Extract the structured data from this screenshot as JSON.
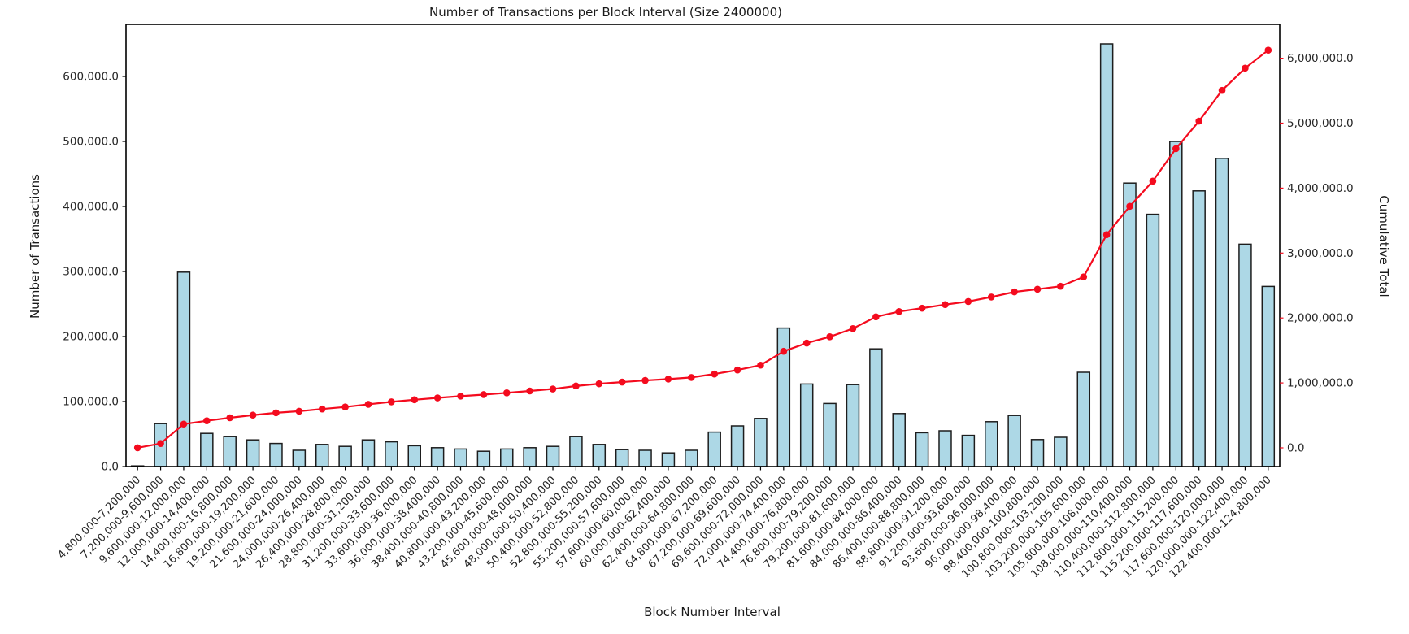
{
  "chart_data": {
    "type": "bar",
    "title": "Number of Transactions per Block Interval (Size 2400000)",
    "xlabel": "Block Number Interval",
    "ylabel_left": "Number of Transactions",
    "ylabel_right": "Cumulative Total",
    "grid": false,
    "legend": "none",
    "categories": [
      "4,800,000-7,200,000",
      "7,200,000-9,600,000",
      "9,600,000-12,000,000",
      "12,000,000-14,400,000",
      "14,400,000-16,800,000",
      "16,800,000-19,200,000",
      "19,200,000-21,600,000",
      "21,600,000-24,000,000",
      "24,000,000-26,400,000",
      "26,400,000-28,800,000",
      "28,800,000-31,200,000",
      "31,200,000-33,600,000",
      "33,600,000-36,000,000",
      "36,000,000-38,400,000",
      "38,400,000-40,800,000",
      "40,800,000-43,200,000",
      "43,200,000-45,600,000",
      "45,600,000-48,000,000",
      "48,000,000-50,400,000",
      "50,400,000-52,800,000",
      "52,800,000-55,200,000",
      "55,200,000-57,600,000",
      "57,600,000-60,000,000",
      "60,000,000-62,400,000",
      "62,400,000-64,800,000",
      "64,800,000-67,200,000",
      "67,200,000-69,600,000",
      "69,600,000-72,000,000",
      "72,000,000-74,400,000",
      "74,400,000-76,800,000",
      "76,800,000-79,200,000",
      "79,200,000-81,600,000",
      "81,600,000-84,000,000",
      "84,000,000-86,400,000",
      "86,400,000-88,800,000",
      "88,800,000-91,200,000",
      "91,200,000-93,600,000",
      "93,600,000-96,000,000",
      "96,000,000-98,400,000",
      "98,400,000-100,800,000",
      "100,800,000-103,200,000",
      "103,200,000-105,600,000",
      "105,600,000-108,000,000",
      "108,000,000-110,400,000",
      "110,400,000-112,800,000",
      "112,800,000-115,200,000",
      "115,200,000-117,600,000",
      "117,600,000-120,000,000",
      "120,000,000-122,400,000",
      "122,400,000-124,800,000"
    ],
    "series": [
      {
        "name": "Number of Transactions",
        "type": "bar",
        "axis": "left",
        "values": [
          1000,
          66000,
          299000,
          51000,
          46000,
          41000,
          35500,
          25000,
          34000,
          31000,
          41000,
          38000,
          32000,
          29000,
          27000,
          23500,
          27000,
          29000,
          31000,
          46000,
          34000,
          26000,
          25000,
          21000,
          25000,
          53000,
          62500,
          74000,
          213000,
          127000,
          97000,
          126000,
          181000,
          81500,
          52000,
          55000,
          48000,
          69000,
          78500,
          41500,
          45000,
          145000,
          650000,
          436000,
          388000,
          500000,
          424000,
          474000,
          342000,
          277000
        ]
      },
      {
        "name": "Cumulative Total",
        "type": "line",
        "axis": "right",
        "marker": "circle",
        "values": [
          1000,
          67000,
          366000,
          417000,
          463000,
          504000,
          539500,
          564500,
          598500,
          629500,
          670500,
          708500,
          740500,
          769500,
          796500,
          820000,
          847000,
          876000,
          907000,
          953000,
          987000,
          1013000,
          1038000,
          1059000,
          1084000,
          1137000,
          1199500,
          1273500,
          1486500,
          1613500,
          1710500,
          1836500,
          2017500,
          2099000,
          2151000,
          2206000,
          2254000,
          2323000,
          2401500,
          2443000,
          2488000,
          2633000,
          3283000,
          3719000,
          4107000,
          4607000,
          5031000,
          5505000,
          5847000,
          6124000
        ]
      }
    ],
    "left_axis": {
      "label": "Number of Transactions",
      "ticks": [
        0,
        100000,
        200000,
        300000,
        400000,
        500000,
        600000
      ],
      "tick_labels": [
        "0.0",
        "100,000.0",
        "200,000.0",
        "300,000.0",
        "400,000.0",
        "500,000.0",
        "600,000.0"
      ],
      "range": [
        0,
        680000
      ]
    },
    "right_axis": {
      "label": "Cumulative Total",
      "ticks": [
        0,
        1000000,
        2000000,
        3000000,
        4000000,
        5000000,
        6000000
      ],
      "tick_labels": [
        "0.0",
        "1,000,000.0",
        "2,000,000.0",
        "3,000,000.0",
        "4,000,000.0",
        "5,000,000.0",
        "6,000,000.0"
      ],
      "range": [
        0,
        6550000
      ]
    },
    "colors": {
      "bar_fill": "#add8e6",
      "bar_edge": "#1d1d1d",
      "line": "#f40b1e",
      "marker": "#f40b1e",
      "axis_text": "#262626",
      "right_axis_text": "#f40b1e",
      "spine": "#000000",
      "background": "#ffffff"
    }
  }
}
